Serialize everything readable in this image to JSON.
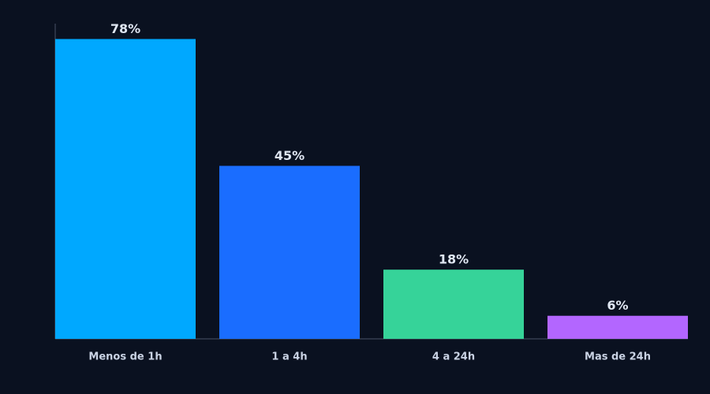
{
  "chart_data": {
    "type": "bar",
    "categories": [
      "Menos de 1h",
      "1 a 4h",
      "4 a 24h",
      "Mas de 24h"
    ],
    "values": [
      78,
      45,
      18,
      6
    ],
    "value_labels": [
      "78%",
      "45%",
      "18%",
      "6%"
    ],
    "colors": [
      "#00a8ff",
      "#1a6dff",
      "#36d399",
      "#b366ff"
    ],
    "ylim": [
      0,
      82
    ]
  }
}
